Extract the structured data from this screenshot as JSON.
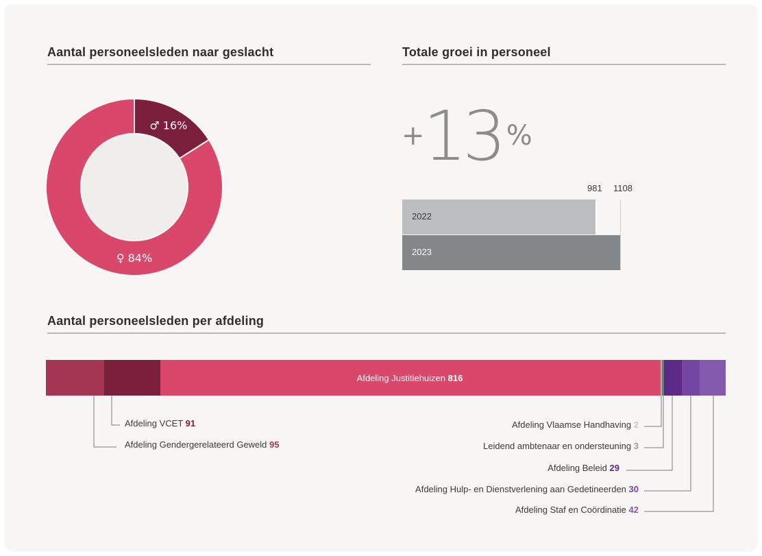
{
  "colors": {
    "male": "#7a1f3c",
    "female": "#d9476b",
    "bar_2022": "#bdbebf",
    "bar_2023": "#848789",
    "purple_dark": "#5a2a86",
    "purple_mid": "#7346a3",
    "purple_light": "#8259ad",
    "rose_muted": "#a33652"
  },
  "sections": {
    "gender_title": "Aantal personeelsleden naar geslacht",
    "growth_title": "Totale groei in personeel",
    "dept_title": "Aantal personeelsleden per afdeling"
  },
  "growth": {
    "sign": "+",
    "number": "13",
    "unit": "%"
  },
  "chart_data": [
    {
      "type": "pie",
      "title": "Aantal personeelsleden naar geslacht",
      "slices": [
        {
          "label": "♂ 16%",
          "value": 16,
          "color": "#7a1f3c"
        },
        {
          "label": "♀ 84%",
          "value": 84,
          "color": "#d9476b"
        }
      ]
    },
    {
      "type": "bar",
      "title": "Totale groei in personeel",
      "orientation": "horizontal",
      "categories": [
        "2022",
        "2023"
      ],
      "values": [
        981,
        1108
      ],
      "value_labels": [
        "981",
        "1108"
      ],
      "xlim": [
        0,
        1108
      ]
    },
    {
      "type": "bar",
      "title": "Aantal personeelsleden per afdeling",
      "orientation": "horizontal-stacked",
      "segments": [
        {
          "name": "Afdeling Gendergerelateerd Geweld",
          "value": 95,
          "value_label": "95",
          "color": "#a33652"
        },
        {
          "name": "Afdeling VCET",
          "value": 91,
          "value_label": "91",
          "color": "#7a1f3c"
        },
        {
          "name": "Afdeling Justitiehuizen",
          "value": 816,
          "value_label": "816",
          "color": "#d9476b"
        },
        {
          "name": "Afdeling Vlaamse Handhaving",
          "value": 2,
          "value_label": "2",
          "color": "#b0b0b0"
        },
        {
          "name": "Leidend ambtenaar en ondersteuning",
          "value": 3,
          "value_label": "3",
          "color": "#777777"
        },
        {
          "name": "Afdeling Beleid",
          "value": 29,
          "value_label": "29",
          "color": "#5a2a86"
        },
        {
          "name": "Afdeling Hulp- en Dienstverlening aan Gedetineerden",
          "value": 30,
          "value_label": "30",
          "color": "#7346a3"
        },
        {
          "name": "Afdeling Staf en Coördinatie",
          "value": 42,
          "value_label": "42",
          "color": "#8259ad"
        }
      ]
    }
  ]
}
